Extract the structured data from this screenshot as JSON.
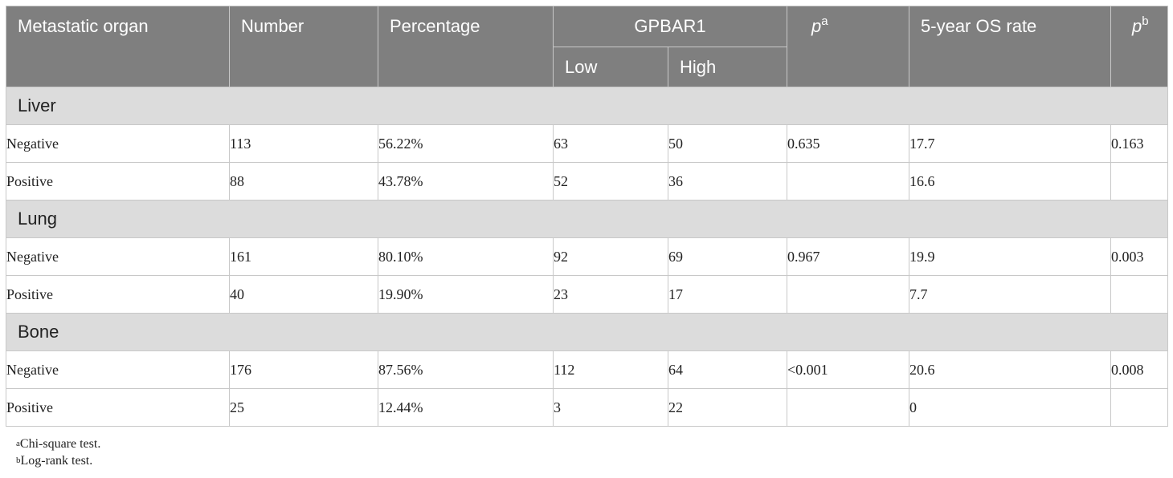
{
  "header": {
    "col_organ": "Metastatic organ",
    "col_number": "Number",
    "col_percentage": "Percentage",
    "col_gpbar1": "GPBAR1",
    "col_low": "Low",
    "col_high": "High",
    "col_pa": "p",
    "col_pa_sup": "a",
    "col_os": "5-year OS rate",
    "col_pb": "p",
    "col_pb_sup": "b"
  },
  "groups": [
    {
      "name": "Liver",
      "rows": [
        {
          "label": "Negative",
          "number": "113",
          "percentage": "56.22%",
          "low": "63",
          "high": "50",
          "pa": "0.635",
          "os": "17.7",
          "pb": "0.163"
        },
        {
          "label": "Positive",
          "number": "88",
          "percentage": "43.78%",
          "low": "52",
          "high": "36",
          "pa": "",
          "os": "16.6",
          "pb": ""
        }
      ]
    },
    {
      "name": "Lung",
      "rows": [
        {
          "label": "Negative",
          "number": "161",
          "percentage": "80.10%",
          "low": "92",
          "high": "69",
          "pa": "0.967",
          "os": "19.9",
          "pb": "0.003"
        },
        {
          "label": "Positive",
          "number": "40",
          "percentage": "19.90%",
          "low": "23",
          "high": "17",
          "pa": "",
          "os": "7.7",
          "pb": ""
        }
      ]
    },
    {
      "name": "Bone",
      "rows": [
        {
          "label": "Negative",
          "number": "176",
          "percentage": "87.56%",
          "low": "112",
          "high": "64",
          "pa": "<0.001",
          "os": "20.6",
          "pb": "0.008"
        },
        {
          "label": "Positive",
          "number": "25",
          "percentage": "12.44%",
          "low": "3",
          "high": "22",
          "pa": "",
          "os": "0",
          "pb": ""
        }
      ]
    }
  ],
  "footnotes": [
    {
      "mark": "a",
      "text": "Chi-square test."
    },
    {
      "mark": "b",
      "text": "Log-rank test."
    }
  ]
}
